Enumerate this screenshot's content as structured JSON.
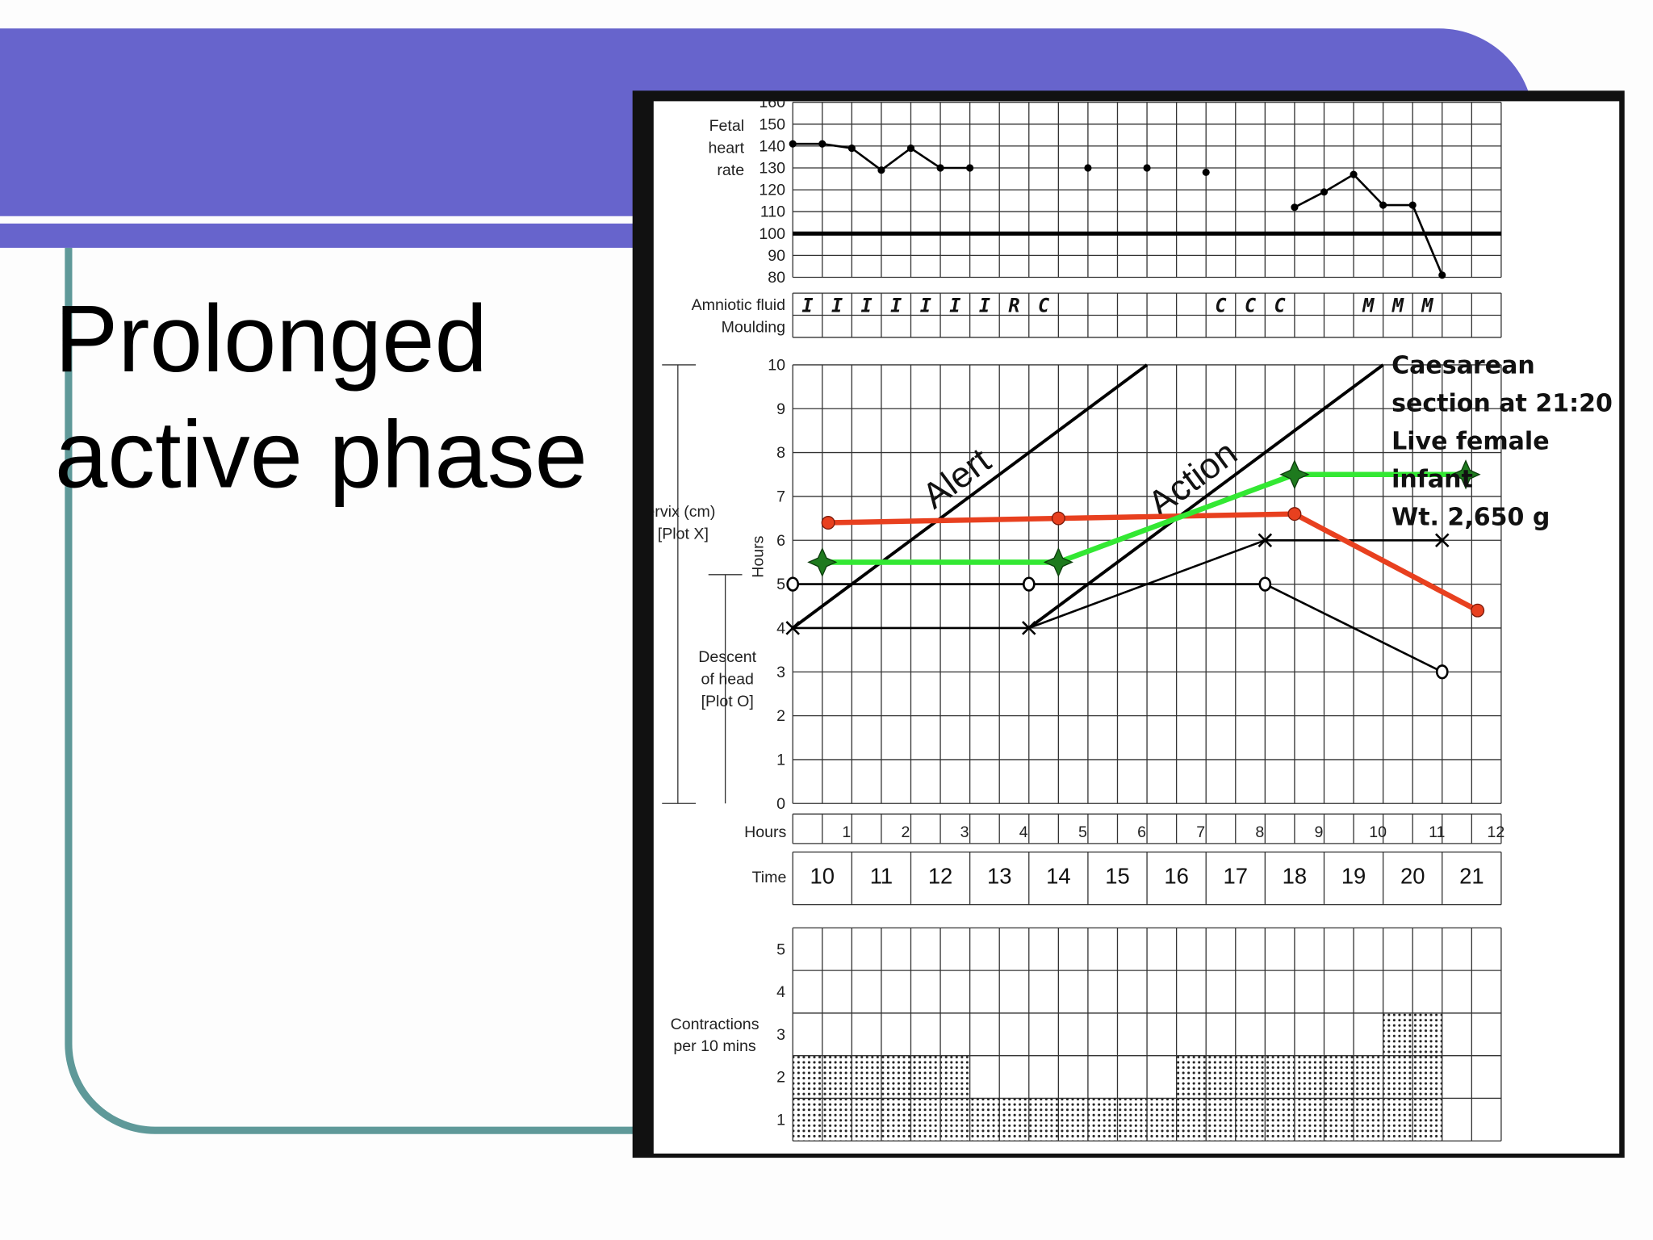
{
  "slide": {
    "title_lines": [
      "Prolonged",
      "active phase"
    ]
  },
  "partograph": {
    "fetal_heart_rate": {
      "type": "line",
      "labels": [
        "Fetal",
        "heart",
        "rate"
      ],
      "ylim": [
        80,
        160
      ],
      "yticks": [
        80,
        90,
        100,
        110,
        120,
        130,
        140,
        150,
        160
      ],
      "xlim": [
        0,
        12
      ],
      "x": [
        0,
        0.5,
        1,
        1.5,
        2,
        2.5,
        3,
        null,
        5,
        null,
        6,
        null,
        7,
        null,
        8.5,
        9,
        9.5,
        10,
        10.5,
        11
      ],
      "values": [
        141,
        141,
        139,
        129,
        139,
        130,
        130,
        null,
        130,
        null,
        130,
        null,
        128,
        null,
        112,
        119,
        127,
        113,
        113,
        81
      ],
      "reference_line": 100,
      "color": "#000000"
    },
    "amniotic_fluid": {
      "labels": [
        "Amniotic fluid",
        "Moulding"
      ],
      "entries": [
        "I",
        "I",
        "I",
        "I",
        "I",
        "I",
        "I",
        "R",
        "C",
        null,
        null,
        null,
        null,
        null,
        "C",
        "C",
        "C",
        null,
        null,
        "M",
        "M",
        "M",
        null,
        null
      ]
    },
    "cervix": {
      "type": "line",
      "ylim": [
        0,
        10
      ],
      "yticks": [
        0,
        1,
        2,
        3,
        4,
        5,
        6,
        7,
        8,
        9,
        10
      ],
      "xlim": [
        0,
        12
      ],
      "labels": {
        "cervix": "Cervix (cm)",
        "plot_x": "[Plot X]",
        "hours": "Hours",
        "descent": "Descent",
        "of_head": "of head",
        "plot_o": "[Plot O]"
      },
      "alert_line": {
        "name": "Alert",
        "x": [
          0,
          6
        ],
        "values": [
          4,
          10
        ]
      },
      "action_line": {
        "name": "Action",
        "x": [
          4,
          10
        ],
        "values": [
          4,
          10
        ]
      },
      "series": [
        {
          "marker": "x",
          "color": "#000000",
          "x": [
            0,
            4,
            8,
            11
          ],
          "values": [
            4,
            4,
            6,
            6
          ]
        },
        {
          "marker": "o",
          "color": "#000000",
          "x": [
            0,
            4,
            8,
            11
          ],
          "values": [
            5,
            5,
            5,
            3
          ]
        },
        {
          "marker": "dot",
          "color": "#e8401f",
          "x": [
            0.6,
            4.5,
            8.5,
            11.6
          ],
          "values": [
            6.4,
            6.5,
            6.6,
            4.4
          ]
        },
        {
          "marker": "star",
          "color": "#33e833",
          "x": [
            0.5,
            4.5,
            8.5,
            11.4
          ],
          "values": [
            5.5,
            5.5,
            7.5,
            7.5
          ]
        }
      ],
      "annotation": [
        "Caesarean",
        "section at 21:20",
        "Live female",
        "infant",
        "Wt. 2,650 g"
      ]
    },
    "hours": {
      "label": "Hours",
      "ticks": [
        1,
        2,
        3,
        4,
        5,
        6,
        7,
        8,
        9,
        10,
        11,
        12
      ]
    },
    "time": {
      "label": "Time",
      "categories": [
        "10",
        "11",
        "12",
        "13",
        "14",
        "15",
        "16",
        "17",
        "18",
        "19",
        "20",
        "21"
      ]
    },
    "contractions": {
      "type": "bar",
      "labels": [
        "Contractions",
        "per 10 mins"
      ],
      "ylim": [
        0,
        5
      ],
      "yticks": [
        1,
        2,
        3,
        4,
        5
      ],
      "values": [
        2,
        2,
        2,
        2,
        2,
        2,
        1,
        1,
        1,
        1,
        1,
        1,
        1,
        2,
        2,
        2,
        2,
        2,
        2,
        2,
        3,
        3,
        null,
        null
      ]
    }
  }
}
